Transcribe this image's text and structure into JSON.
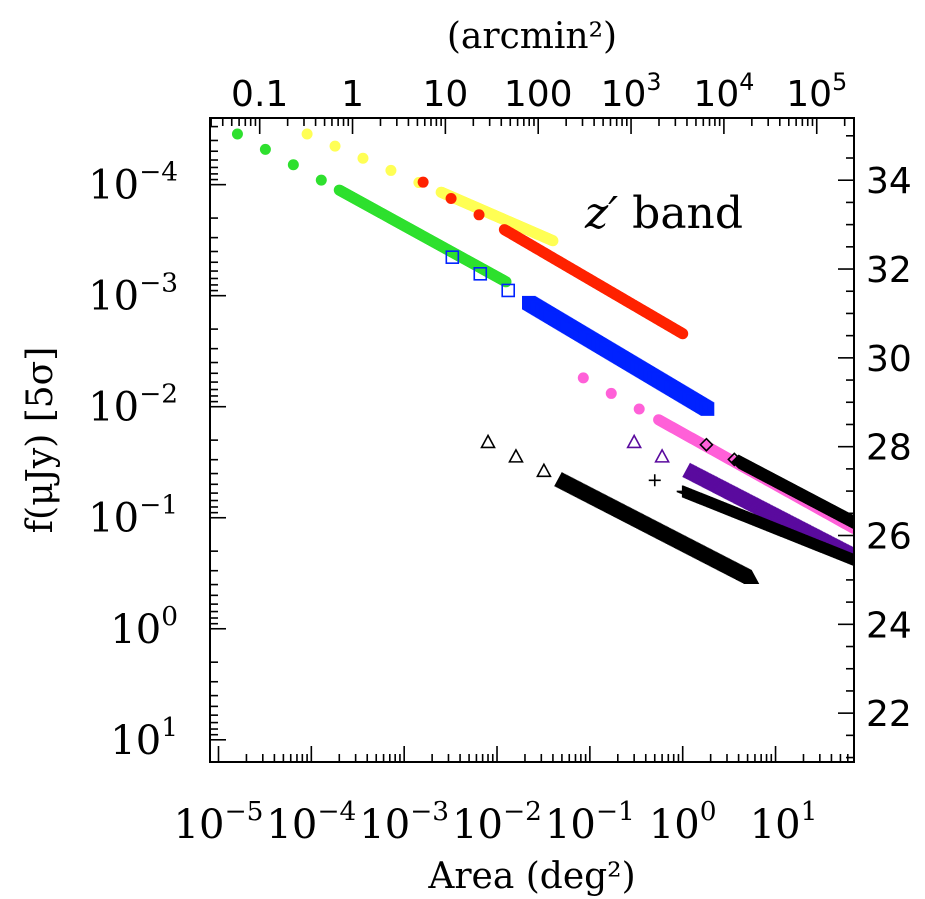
{
  "chart_data": {
    "type": "scatter",
    "title": "",
    "annotation": {
      "italic": "z′",
      "text": " band"
    },
    "xlabel": "Area (deg²)",
    "x2label": "(arcmin²)",
    "ylabel": "f(μJy) [5σ]",
    "xscale": "log",
    "yscale": "log",
    "y_inverted": true,
    "xlim": [
      8.1e-06,
      70
    ],
    "ylim_flux_uJy": [
      2.51e-05,
      15.85
    ],
    "x_ticks": [
      {
        "value": 1e-05,
        "mantissa": "10",
        "exp": "−5"
      },
      {
        "value": 0.0001,
        "mantissa": "10",
        "exp": "−4"
      },
      {
        "value": 0.001,
        "mantissa": "10",
        "exp": "−3"
      },
      {
        "value": 0.01,
        "mantissa": "10",
        "exp": "−2"
      },
      {
        "value": 0.1,
        "mantissa": "10",
        "exp": "−1"
      },
      {
        "value": 1,
        "mantissa": "10",
        "exp": "0"
      },
      {
        "value": 10,
        "mantissa": "10",
        "exp": "1"
      }
    ],
    "y_ticks": [
      {
        "value": 0.0001,
        "mantissa": "10",
        "exp": "−4"
      },
      {
        "value": 0.001,
        "mantissa": "10",
        "exp": "−3"
      },
      {
        "value": 0.01,
        "mantissa": "10",
        "exp": "−2"
      },
      {
        "value": 0.1,
        "mantissa": "10",
        "exp": "−1"
      },
      {
        "value": 1,
        "mantissa": "10",
        "exp": "0"
      },
      {
        "value": 10,
        "mantissa": "10",
        "exp": "1"
      }
    ],
    "top_ticks_arcmin2": [
      {
        "value": 0.1,
        "label": "0.1"
      },
      {
        "value": 1,
        "label": "1"
      },
      {
        "value": 10,
        "label": "10"
      },
      {
        "value": 100,
        "label": "100"
      },
      {
        "value": 1000,
        "label": "10",
        "exp": "3"
      },
      {
        "value": 10000,
        "label": "10",
        "exp": "4"
      },
      {
        "value": 100000,
        "label": "10",
        "exp": "5"
      }
    ],
    "right_ticks_mag": [
      {
        "value": 34,
        "label": "34"
      },
      {
        "value": 32,
        "label": "32"
      },
      {
        "value": 30,
        "label": "30"
      },
      {
        "value": 28,
        "label": "28"
      },
      {
        "value": 26,
        "label": "26"
      },
      {
        "value": 24,
        "label": "24"
      },
      {
        "value": 22,
        "label": "22"
      }
    ],
    "grid": false,
    "legend": "none",
    "series": [
      {
        "color": "#2ee02e",
        "marker": "filled-circle",
        "x_range": [
          1.6e-05,
          0.0125
        ],
        "y_range": [
          3.5e-05,
          0.00075
        ],
        "dense_from": 0.0002
      },
      {
        "color": "#ffff55",
        "marker": "filled-circle",
        "x_range": [
          9e-05,
          0.04
        ],
        "y_range": [
          3.5e-05,
          0.00032
        ],
        "dense_from": 0.0025
      },
      {
        "color": "#ff2200",
        "marker": "filled-circle",
        "x_range": [
          0.0016,
          1.0
        ],
        "y_range": [
          9.5e-05,
          0.0022
        ],
        "dense_from": 0.012
      },
      {
        "color": "#0022ff",
        "marker": "open-square",
        "x_range": [
          0.0033,
          1.85
        ],
        "y_range": [
          0.00045,
          0.0105
        ],
        "dense_from": 0.022
      },
      {
        "color": "#ff60d8",
        "marker": "filled-circle",
        "x_range": [
          0.085,
          70
        ],
        "y_range": [
          0.0055,
          0.125
        ],
        "dense_from": 0.55
      },
      {
        "color": "#000000",
        "marker": "open-diamond",
        "x_range": [
          1.8,
          70
        ],
        "y_range": [
          0.022,
          0.11
        ],
        "dense_from": 4
      },
      {
        "color": "#5a0a9e",
        "marker": "open-triangle",
        "x_range": [
          0.3,
          70
        ],
        "y_range": [
          0.021,
          0.22
        ],
        "dense_from": 1.2
      },
      {
        "color": "#000000",
        "marker": "plus",
        "x_range": [
          0.5,
          70
        ],
        "y_range": [
          0.046,
          0.24
        ],
        "dense_from": 1.0
      },
      {
        "color": "#000000",
        "marker": "open-triangle",
        "x_range": [
          0.008,
          5.5
        ],
        "y_range": [
          0.021,
          0.35
        ],
        "dense_from": 0.05
      }
    ]
  }
}
